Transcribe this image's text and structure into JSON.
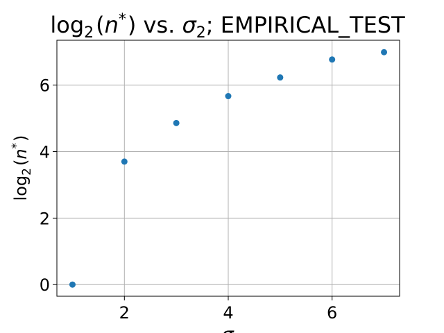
{
  "chart_data": {
    "type": "scatter",
    "title_parts": {
      "log": "log",
      "sub": "2",
      "open": "(",
      "n": "n",
      "star": "*",
      "close": ")",
      "vs": " vs. ",
      "sigma": "σ",
      "sigma_sub": "2",
      "rest": "; EMPIRICAL_TEST"
    },
    "ylabel_parts": {
      "log": "log",
      "sub": "2",
      "open": "(",
      "n": "n",
      "star": "*",
      "close": ")"
    },
    "xlabel": "σ",
    "x": [
      1,
      2,
      3,
      4,
      5,
      6,
      7
    ],
    "y": [
      0.0,
      3.7,
      4.86,
      5.67,
      6.23,
      6.77,
      6.99
    ],
    "xlim": [
      0.7,
      7.3
    ],
    "ylim": [
      -0.35,
      7.35
    ],
    "xticks": [
      2,
      4,
      6
    ],
    "yticks": [
      0,
      2,
      4,
      6
    ],
    "xtick_labels": [
      "2",
      "4",
      "6"
    ],
    "ytick_labels": [
      "0",
      "2",
      "4",
      "6"
    ],
    "grid": true,
    "point_color": "#1f77b4",
    "grid_color": "#b0b0b0"
  }
}
